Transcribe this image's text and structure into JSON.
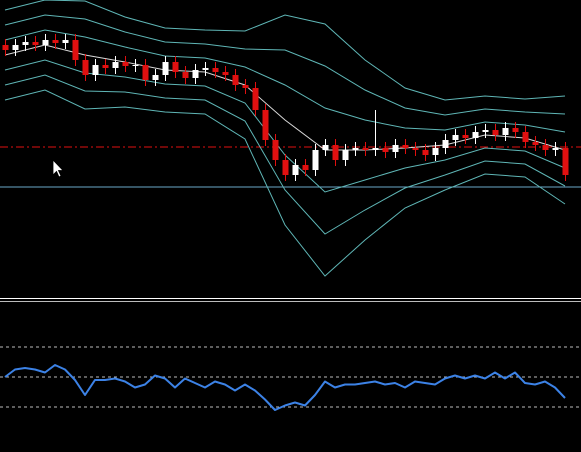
{
  "chart_data": [
    {
      "type": "candlestick",
      "categories": [
        null,
        null,
        null,
        null,
        null,
        null,
        null,
        null,
        null,
        null,
        null,
        null,
        null,
        null,
        null,
        null,
        null,
        null,
        null,
        null,
        null,
        null,
        null,
        null,
        null,
        null,
        null,
        null,
        null,
        null,
        null,
        null,
        null,
        null,
        null,
        null,
        null,
        null,
        null,
        null,
        null,
        null,
        null,
        null,
        null,
        null,
        null,
        null,
        null,
        null,
        null,
        null,
        null,
        null,
        null,
        null,
        null
      ],
      "open": [
        253,
        248,
        253,
        256,
        253,
        258,
        255,
        258,
        238,
        223,
        233,
        230,
        236,
        232,
        233,
        218,
        223,
        236,
        226,
        220,
        228,
        230,
        226,
        223,
        213,
        210,
        188,
        158,
        138,
        123,
        133,
        128,
        148,
        153,
        138,
        148,
        150,
        148,
        150,
        146,
        153,
        150,
        148,
        143,
        150,
        158,
        163,
        160,
        166,
        168,
        163,
        170,
        166,
        156,
        153,
        148,
        150
      ],
      "high": [
        259,
        259,
        262,
        262,
        264,
        264,
        264,
        264,
        244,
        239,
        239,
        242,
        242,
        239,
        239,
        229,
        242,
        242,
        232,
        234,
        236,
        236,
        232,
        229,
        219,
        216,
        194,
        164,
        144,
        139,
        139,
        154,
        159,
        159,
        154,
        156,
        156,
        188,
        156,
        159,
        159,
        156,
        154,
        156,
        164,
        169,
        169,
        172,
        174,
        174,
        176,
        176,
        172,
        162,
        159,
        156,
        156
      ],
      "low": [
        242,
        242,
        247,
        247,
        247,
        249,
        249,
        232,
        217,
        217,
        224,
        224,
        226,
        226,
        212,
        212,
        217,
        220,
        214,
        214,
        222,
        220,
        217,
        207,
        204,
        182,
        152,
        132,
        117,
        117,
        122,
        122,
        142,
        132,
        132,
        142,
        142,
        142,
        140,
        140,
        144,
        142,
        137,
        137,
        144,
        152,
        154,
        154,
        160,
        157,
        157,
        160,
        150,
        147,
        142,
        142,
        117
      ],
      "close": [
        248,
        253,
        256,
        253,
        258,
        255,
        258,
        238,
        223,
        233,
        230,
        236,
        232,
        233,
        218,
        223,
        236,
        226,
        220,
        228,
        230,
        226,
        223,
        213,
        210,
        188,
        158,
        138,
        123,
        133,
        128,
        148,
        153,
        138,
        148,
        150,
        148,
        150,
        146,
        153,
        150,
        148,
        143,
        150,
        158,
        163,
        160,
        166,
        168,
        163,
        170,
        166,
        156,
        153,
        148,
        150,
        123
      ],
      "up_color": "#ffffff",
      "down_color": "#e01010",
      "ylim": [
        0,
        298
      ],
      "bands": {
        "x": [
          0,
          4,
          8,
          12,
          16,
          20,
          24,
          28,
          32,
          36,
          40,
          44,
          48,
          52,
          56
        ],
        "series": [
          {
            "color": "#d8d8d8",
            "values": [
              243,
              253,
              243,
              236,
              228,
              226,
              213,
              178,
              148,
              148,
              150,
              153,
              163,
              160,
              148
            ]
          },
          {
            "color": "#5fb6b6",
            "values": [
              258,
              268,
              261,
              251,
              242,
              240,
              231,
              213,
              190,
              178,
              170,
              168,
              176,
              173,
              166
            ]
          },
          {
            "color": "#5fb6b6",
            "values": [
              273,
              283,
              279,
              266,
              256,
              254,
              249,
              248,
              232,
              208,
              190,
              183,
              189,
              186,
              184
            ]
          },
          {
            "color": "#5fb6b6",
            "values": [
              288,
              298,
              297,
              281,
              270,
              268,
              267,
              283,
              274,
              238,
              210,
              198,
              202,
              199,
              202
            ]
          },
          {
            "color": "#5fb6b6",
            "values": [
              228,
              238,
              225,
              221,
              214,
              212,
              195,
              143,
              106,
              118,
              130,
              138,
              150,
              147,
              130
            ]
          },
          {
            "color": "#5fb6b6",
            "values": [
              213,
              223,
              207,
              206,
              200,
              198,
              177,
              108,
              64,
              88,
              110,
              123,
              137,
              134,
              112
            ]
          },
          {
            "color": "#5fb6b6",
            "values": [
              198,
              208,
              189,
              191,
              186,
              184,
              159,
              73,
              22,
              58,
              90,
              108,
              124,
              121,
              94
            ]
          }
        ]
      },
      "hlines": [
        {
          "value": 151,
          "color": "#e01010",
          "dash": true
        },
        {
          "value": 111,
          "color": "#6aa8c8",
          "dash": false
        }
      ]
    },
    {
      "type": "line",
      "categories": [
        null,
        null,
        null,
        null,
        null,
        null,
        null,
        null,
        null,
        null,
        null,
        null,
        null,
        null,
        null,
        null,
        null,
        null,
        null,
        null,
        null,
        null,
        null,
        null,
        null,
        null,
        null,
        null,
        null,
        null,
        null,
        null,
        null,
        null,
        null,
        null,
        null,
        null,
        null,
        null,
        null,
        null,
        null,
        null,
        null,
        null,
        null,
        null,
        null,
        null,
        null,
        null,
        null,
        null,
        null,
        null,
        null
      ],
      "series": [
        {
          "color": "#3c82e6",
          "values": [
            50,
            55,
            56,
            55,
            53,
            58,
            55,
            48,
            38,
            48,
            48,
            49,
            47,
            43,
            45,
            51,
            49,
            43,
            49,
            46,
            43,
            47,
            45,
            41,
            45,
            41,
            35,
            28,
            31,
            33,
            31,
            38,
            47,
            43,
            45,
            45,
            46,
            47,
            45,
            46,
            43,
            47,
            46,
            45,
            49,
            51,
            49,
            51,
            49,
            53,
            49,
            53,
            46,
            45,
            47,
            43,
            36
          ]
        }
      ],
      "ylim": [
        0,
        100
      ],
      "levels": [
        30,
        50,
        70
      ]
    }
  ]
}
